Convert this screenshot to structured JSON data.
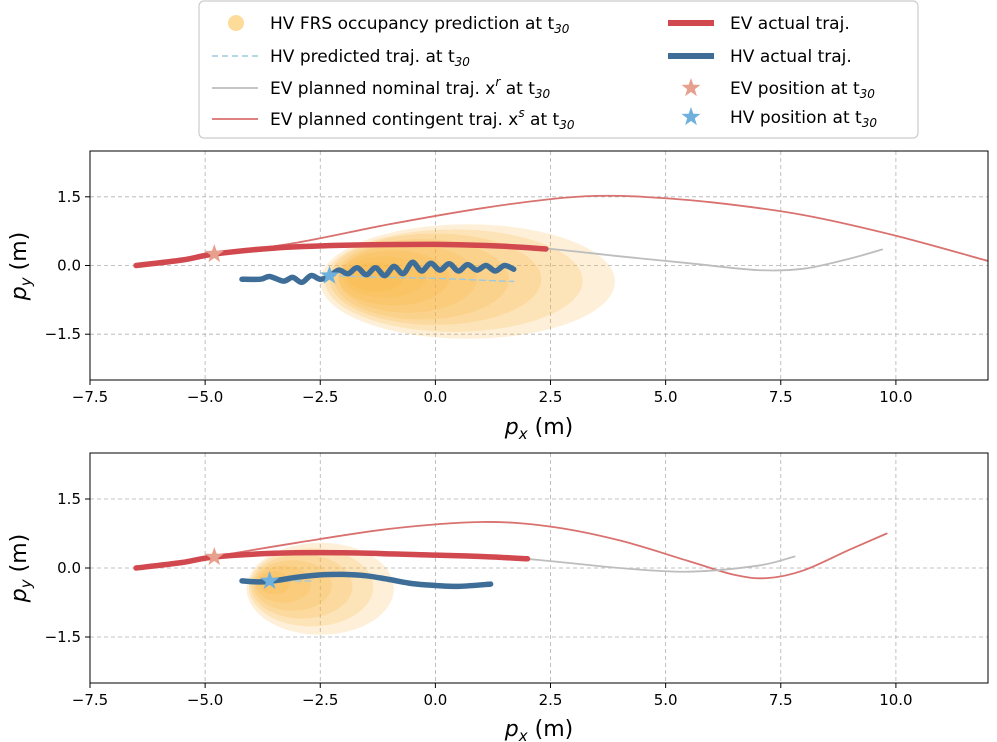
{
  "legend": {
    "entries": [
      {
        "id": "frs",
        "text": "HV FRS occupancy prediction at t",
        "sub": "30",
        "color": "#fbbf45"
      },
      {
        "id": "hvpred",
        "text": "HV predicted traj. at t",
        "sub": "30",
        "color": "#9ecae1"
      },
      {
        "id": "nominal",
        "text": "EV planned nominal traj. x",
        "sup": "r",
        "after": " at t",
        "sub": "30",
        "color": "#bdbdbd"
      },
      {
        "id": "contingent",
        "text": "EV planned contingent traj. x",
        "sup": "s",
        "after": " at t",
        "sub": "30",
        "color": "#d9716f"
      },
      {
        "id": "evactual",
        "text": "EV actual traj.",
        "color": "#d1484f"
      },
      {
        "id": "hvactual",
        "text": "HV actual traj.",
        "color": "#3e6e97"
      },
      {
        "id": "evpos",
        "text": "EV position at t",
        "sub": "30",
        "color": "#e8a08e"
      },
      {
        "id": "hvpos",
        "text": "HV position at t",
        "sub": "30",
        "color": "#6fb0dc"
      }
    ]
  },
  "chart_data": [
    {
      "type": "line",
      "xlabel": "p_x (m)",
      "ylabel": "p_y (m)",
      "xlim": [
        -7.5,
        12.0
      ],
      "ylim": [
        -2.5,
        2.5
      ],
      "xticks": [
        -7.5,
        -5.0,
        -2.5,
        0.0,
        2.5,
        5.0,
        7.5,
        10.0
      ],
      "xtick_labels": [
        "−7.5",
        "−5.0",
        "−2.5",
        "0.0",
        "2.5",
        "5.0",
        "7.5",
        "10.0"
      ],
      "yticks": [
        1.5,
        0.0,
        -1.5
      ],
      "ytick_labels": [
        "1.5",
        "0.0",
        "−1.5"
      ],
      "grid": true,
      "series": [
        {
          "name": "EV planned contingent traj.",
          "x": [
            -4.8,
            -3,
            -1,
            1,
            2.5,
            3.5,
            4.5,
            6,
            8,
            10,
            12
          ],
          "y": [
            0.25,
            0.5,
            0.9,
            1.25,
            1.45,
            1.52,
            1.5,
            1.38,
            1.1,
            0.65,
            0.1
          ]
        },
        {
          "name": "EV planned nominal traj.",
          "x": [
            -4.8,
            -3,
            -1,
            1,
            2.4,
            4,
            5.5,
            7,
            8,
            9,
            9.7
          ],
          "y": [
            0.25,
            0.4,
            0.45,
            0.42,
            0.37,
            0.2,
            0.05,
            -0.1,
            -0.07,
            0.15,
            0.35
          ]
        },
        {
          "name": "HV predicted traj.",
          "x": [
            -2.3,
            -1,
            0,
            1,
            1.7
          ],
          "y": [
            -0.22,
            -0.26,
            -0.28,
            -0.32,
            -0.35
          ]
        },
        {
          "name": "EV actual traj.",
          "x": [
            -6.5,
            -5.5,
            -4.8,
            -3.5,
            -2,
            0,
            1.5,
            2.4
          ],
          "y": [
            0.0,
            0.12,
            0.25,
            0.38,
            0.44,
            0.46,
            0.42,
            0.36
          ]
        },
        {
          "name": "HV actual traj.",
          "x": [
            -4.2,
            -3.8,
            -3.6,
            -3.3,
            -3.1,
            -2.9,
            -2.7,
            -2.5,
            -2.3,
            -2.1,
            -1.9,
            -1.7,
            -1.5,
            -1.3,
            -1.1,
            -0.9,
            -0.7,
            -0.5,
            -0.3,
            -0.1,
            0.1,
            0.3,
            0.5,
            0.7,
            0.9,
            1.1,
            1.3,
            1.5,
            1.7
          ],
          "y": [
            -0.3,
            -0.3,
            -0.24,
            -0.34,
            -0.26,
            -0.37,
            -0.22,
            -0.3,
            -0.24,
            -0.1,
            -0.18,
            -0.05,
            -0.2,
            -0.05,
            -0.22,
            -0.02,
            -0.18,
            0.07,
            -0.12,
            0.05,
            -0.1,
            0.04,
            -0.12,
            0.02,
            -0.1,
            0.0,
            -0.12,
            0.0,
            -0.08
          ]
        }
      ],
      "markers": {
        "ev_position": [
          -4.8,
          0.25
        ],
        "hv_position": [
          -2.3,
          -0.22
        ]
      },
      "frs_ellipses": [
        {
          "cx": -1.3,
          "cy": -0.25,
          "rx": 0.6,
          "ry": 0.32
        },
        {
          "cx": -1.1,
          "cy": -0.25,
          "rx": 0.9,
          "ry": 0.45
        },
        {
          "cx": -0.9,
          "cy": -0.27,
          "rx": 1.2,
          "ry": 0.6
        },
        {
          "cx": -0.6,
          "cy": -0.28,
          "rx": 1.5,
          "ry": 0.75
        },
        {
          "cx": -0.3,
          "cy": -0.3,
          "rx": 1.9,
          "ry": 0.88
        },
        {
          "cx": 0.0,
          "cy": -0.3,
          "rx": 2.3,
          "ry": 1.0
        },
        {
          "cx": 0.4,
          "cy": -0.33,
          "rx": 2.8,
          "ry": 1.12
        },
        {
          "cx": 0.7,
          "cy": -0.35,
          "rx": 3.2,
          "ry": 1.25
        }
      ]
    },
    {
      "type": "line",
      "xlabel": "p_x (m)",
      "ylabel": "p_y (m)",
      "xlim": [
        -7.5,
        12.0
      ],
      "ylim": [
        -2.5,
        2.5
      ],
      "xticks": [
        -7.5,
        -5.0,
        -2.5,
        0.0,
        2.5,
        5.0,
        7.5,
        10.0
      ],
      "xtick_labels": [
        "−7.5",
        "−5.0",
        "−2.5",
        "0.0",
        "2.5",
        "5.0",
        "7.5",
        "10.0"
      ],
      "yticks": [
        1.5,
        0.0,
        -1.5
      ],
      "ytick_labels": [
        "1.5",
        "0.0",
        "−1.5"
      ],
      "grid": true,
      "series": [
        {
          "name": "EV planned contingent traj.",
          "x": [
            -4.8,
            -3,
            -1,
            1,
            2.5,
            4,
            5.5,
            6.5,
            7.2,
            8,
            9,
            9.8
          ],
          "y": [
            0.25,
            0.55,
            0.85,
            1.0,
            0.9,
            0.6,
            0.15,
            -0.15,
            -0.22,
            -0.05,
            0.4,
            0.75
          ]
        },
        {
          "name": "EV planned nominal traj.",
          "x": [
            -4.8,
            -3,
            -1,
            1,
            2.5,
            4,
            5.5,
            7,
            7.8
          ],
          "y": [
            0.25,
            0.35,
            0.32,
            0.27,
            0.15,
            0.0,
            -0.08,
            0.05,
            0.25
          ]
        },
        {
          "name": "HV predicted traj.",
          "x": [
            -3.7,
            -3.2,
            -2.7
          ],
          "y": [
            -0.28,
            -0.28,
            -0.28
          ]
        },
        {
          "name": "EV actual traj.",
          "x": [
            -6.5,
            -5.5,
            -4.8,
            -3.5,
            -2,
            0,
            1,
            2
          ],
          "y": [
            0.0,
            0.12,
            0.24,
            0.32,
            0.33,
            0.28,
            0.25,
            0.2
          ]
        },
        {
          "name": "HV actual traj.",
          "x": [
            -4.2,
            -3.7,
            -3,
            -2.5,
            -2,
            -1.5,
            -1,
            -0.5,
            0,
            0.5,
            1.2
          ],
          "y": [
            -0.28,
            -0.3,
            -0.2,
            -0.15,
            -0.14,
            -0.17,
            -0.25,
            -0.34,
            -0.38,
            -0.4,
            -0.35
          ]
        }
      ],
      "markers": {
        "ev_position": [
          -4.8,
          0.24
        ],
        "hv_position": [
          -3.6,
          -0.28
        ]
      },
      "frs_ellipses": [
        {
          "cx": -3.5,
          "cy": -0.32,
          "rx": 0.35,
          "ry": 0.25
        },
        {
          "cx": -3.3,
          "cy": -0.35,
          "rx": 0.6,
          "ry": 0.4
        },
        {
          "cx": -3.1,
          "cy": -0.38,
          "rx": 0.85,
          "ry": 0.55
        },
        {
          "cx": -2.9,
          "cy": -0.4,
          "rx": 1.1,
          "ry": 0.7
        },
        {
          "cx": -2.7,
          "cy": -0.42,
          "rx": 1.35,
          "ry": 0.85
        },
        {
          "cx": -2.5,
          "cy": -0.45,
          "rx": 1.6,
          "ry": 1.0
        }
      ]
    }
  ]
}
